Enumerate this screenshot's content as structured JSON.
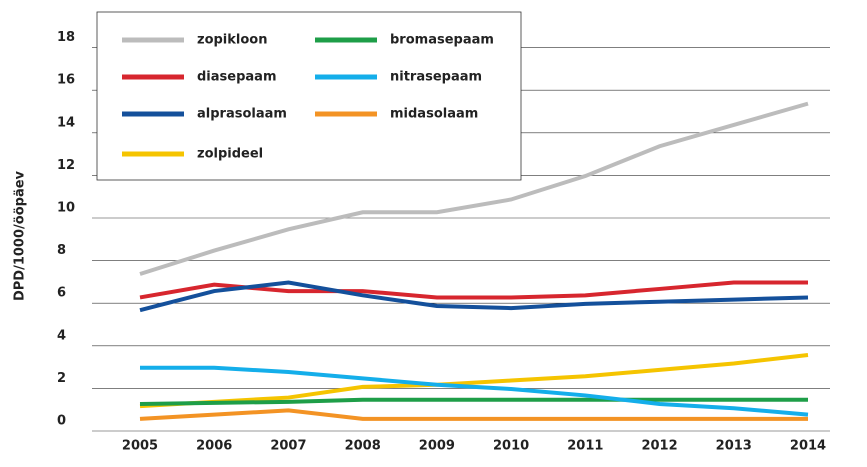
{
  "chart_data": {
    "type": "line",
    "y_label": "DPD/1000/ööpäev",
    "categories": [
      "2005",
      "2006",
      "2007",
      "2008",
      "2009",
      "2010",
      "2011",
      "2012",
      "2013",
      "2014"
    ],
    "series": [
      {
        "name": "zopikloon",
        "color": "#bcbcbc",
        "values": [
          6.9,
          8,
          9,
          9.8,
          9.8,
          10.4,
          11.5,
          12.9,
          13.9,
          14.9
        ]
      },
      {
        "name": "diasepaam",
        "color": "#d7262e",
        "values": [
          5.8,
          6.4,
          6.1,
          6.1,
          5.8,
          5.8,
          5.9,
          6.2,
          6.5,
          6.5
        ]
      },
      {
        "name": "alprasolaam",
        "color": "#14509b",
        "values": [
          5.2,
          6.1,
          6.5,
          5.9,
          5.4,
          5.3,
          5.5,
          5.6,
          5.7,
          5.8
        ]
      },
      {
        "name": "zolpideel",
        "color": "#f5c400",
        "values": [
          0.7,
          0.9,
          1.1,
          1.6,
          1.7,
          1.9,
          2.1,
          2.4,
          2.7,
          3.1
        ]
      },
      {
        "name": "bromasepaam",
        "color": "#1e9e48",
        "values": [
          0.8,
          0.85,
          0.9,
          1,
          1,
          1,
          1,
          1,
          1,
          1
        ]
      },
      {
        "name": "nitrasepaam",
        "color": "#14aeea",
        "values": [
          2.5,
          2.5,
          2.3,
          2,
          1.7,
          1.5,
          1.2,
          0.8,
          0.6,
          0.3
        ]
      },
      {
        "name": "midasolaam",
        "color": "#f39324",
        "values": [
          0.1,
          0.3,
          0.5,
          0.1,
          0.1,
          0.1,
          0.1,
          0.1,
          0.1,
          0.1
        ]
      }
    ],
    "ylim": [
      0,
      18
    ],
    "yticks": [
      0,
      2,
      4,
      6,
      8,
      10,
      12,
      14,
      16,
      18
    ],
    "grid": true
  }
}
